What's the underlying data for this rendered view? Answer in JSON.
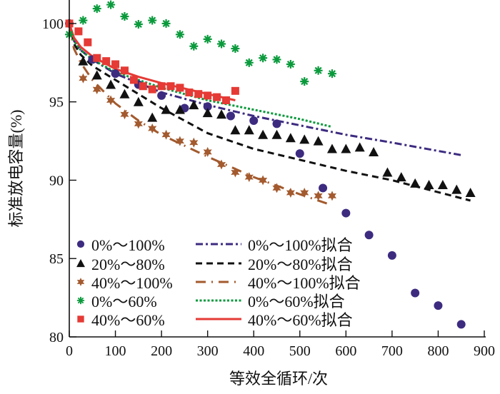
{
  "chart_data": {
    "type": "scatter",
    "xlabel": "等效全循环/次",
    "ylabel": "标准放电容量(%)",
    "xlim": [
      0,
      900
    ],
    "ylim": [
      80,
      101.5
    ],
    "xticks": [
      0,
      100,
      200,
      300,
      400,
      500,
      600,
      700,
      800,
      900
    ],
    "yticks": [
      80,
      85,
      90,
      95,
      100
    ],
    "grid": false,
    "legend_placement": "bottom-left",
    "series": [
      {
        "name": "0%～100%",
        "kind": "marker",
        "marker": "circle",
        "color": "#3d2b80",
        "x": [
          0,
          50,
          100,
          150,
          200,
          250,
          300,
          350,
          400,
          450,
          500,
          550,
          600,
          650,
          700,
          750,
          800,
          850
        ],
        "y": [
          100,
          97.7,
          96.8,
          96.1,
          95.4,
          94.6,
          94.7,
          94.1,
          93.8,
          93.6,
          91.7,
          89.5,
          87.9,
          86.5,
          85.2,
          82.8,
          82.0,
          80.8
        ]
      },
      {
        "name": "20%～80%",
        "kind": "marker",
        "marker": "triangle",
        "color": "#111111",
        "x": [
          30,
          60,
          90,
          120,
          150,
          180,
          210,
          240,
          270,
          300,
          330,
          360,
          390,
          420,
          450,
          480,
          510,
          540,
          570,
          600,
          630,
          660,
          690,
          720,
          750,
          780,
          810,
          840,
          870
        ],
        "y": [
          97.6,
          96.7,
          96.1,
          95.5,
          95.0,
          94.0,
          94.5,
          94.5,
          94.8,
          94.3,
          94.2,
          93.2,
          93.2,
          92.9,
          92.9,
          92.7,
          92.6,
          92.5,
          92.0,
          92.0,
          92.1,
          91.8,
          90.5,
          90.2,
          89.8,
          89.7,
          89.7,
          89.4,
          89.2
        ]
      },
      {
        "name": "40%～100%",
        "kind": "marker",
        "marker": "star",
        "color": "#a35a2e",
        "x": [
          30,
          60,
          90,
          120,
          150,
          180,
          210,
          240,
          270,
          300,
          330,
          360,
          390,
          420,
          450,
          480,
          510,
          540,
          570
        ],
        "y": [
          96.5,
          95.8,
          95.1,
          94.2,
          93.6,
          93.3,
          92.9,
          92.5,
          92.4,
          91.8,
          91.0,
          90.5,
          90.2,
          90.0,
          89.5,
          89.2,
          89.2,
          89.0,
          89.0
        ]
      },
      {
        "name": "0%～60%",
        "kind": "marker",
        "marker": "asterisk",
        "color": "#0a9a3c",
        "x": [
          0,
          30,
          60,
          90,
          120,
          150,
          180,
          210,
          240,
          270,
          300,
          330,
          360,
          390,
          420,
          450,
          480,
          510,
          540,
          570
        ],
        "y": [
          99.3,
          100.2,
          100.95,
          101.2,
          100.45,
          99.95,
          100.2,
          100.0,
          99.3,
          98.55,
          99.0,
          98.7,
          98.4,
          97.5,
          97.8,
          97.7,
          97.4,
          96.3,
          97.0,
          96.8
        ]
      },
      {
        "name": "40%～60%",
        "kind": "marker",
        "marker": "square",
        "color": "#e53a35",
        "x": [
          0,
          20,
          40,
          60,
          80,
          100,
          120,
          140,
          160,
          180,
          200,
          220,
          240,
          260,
          280,
          300,
          320,
          340,
          360
        ],
        "y": [
          100,
          99.5,
          98.8,
          97.8,
          97.6,
          97.4,
          97.0,
          96.4,
          96.0,
          95.8,
          96.0,
          96.0,
          95.9,
          95.6,
          95.5,
          95.4,
          95.3,
          95.1,
          95.7
        ]
      },
      {
        "name": "0%～100%拟合",
        "kind": "line",
        "dash": "dashdot",
        "color": "#3d2b80",
        "x": [
          0,
          10,
          25,
          50,
          100,
          200,
          300,
          400,
          500,
          600,
          700,
          850
        ],
        "y": [
          100,
          98.9,
          98.3,
          97.7,
          96.8,
          95.6,
          94.8,
          94.1,
          93.5,
          92.9,
          92.4,
          91.6
        ]
      },
      {
        "name": "20%～80%拟合",
        "kind": "line",
        "dash": "dashed",
        "color": "#111111",
        "x": [
          0,
          10,
          25,
          50,
          100,
          200,
          300,
          400,
          500,
          600,
          700,
          870
        ],
        "y": [
          100,
          98.7,
          98.0,
          97.3,
          96.4,
          94.6,
          93.0,
          92.0,
          91.3,
          90.6,
          90.0,
          88.7
        ]
      },
      {
        "name": "40%～100%拟合",
        "kind": "line",
        "dash": "longdashdot",
        "color": "#a35a2e",
        "x": [
          0,
          10,
          25,
          50,
          100,
          150,
          200,
          300,
          400,
          500,
          560
        ],
        "y": [
          100,
          98.4,
          97.5,
          96.4,
          94.9,
          93.8,
          92.9,
          91.5,
          90.2,
          89.1,
          88.5
        ]
      },
      {
        "name": "0%～60%拟合",
        "kind": "line",
        "dash": "dotted",
        "color": "#0a9a3c",
        "x": [
          0,
          10,
          25,
          50,
          100,
          150,
          200,
          300,
          400,
          500,
          570
        ],
        "y": [
          100,
          98.9,
          98.3,
          97.7,
          96.9,
          96.4,
          95.9,
          95.1,
          94.5,
          93.9,
          93.4
        ]
      },
      {
        "name": "40%～60%拟合",
        "kind": "line",
        "dash": "solid",
        "color": "#e53a35",
        "x": [
          0,
          10,
          25,
          50,
          100,
          150,
          200,
          300,
          360
        ],
        "y": [
          100,
          99.1,
          98.5,
          97.9,
          97.1,
          96.6,
          96.2,
          95.5,
          95.1
        ]
      }
    ]
  }
}
